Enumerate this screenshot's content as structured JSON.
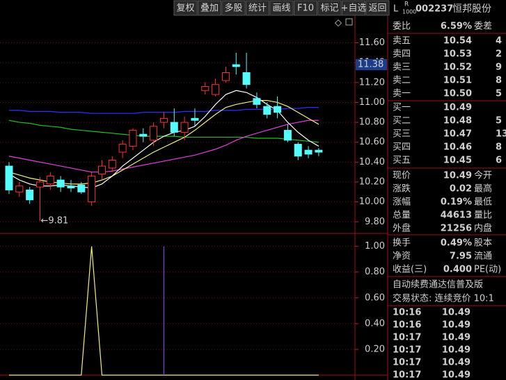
{
  "toolbar": [
    "复权",
    "叠加",
    "多股",
    "统计",
    "画线",
    "F10",
    "标记",
    "+自选",
    "返回"
  ],
  "chart_data": [
    {
      "type": "candlestick",
      "ylim": [
        9.69,
        12.03
      ],
      "yticks": [
        {
          "value": 11.6,
          "label": "11.60"
        },
        {
          "value": 11.4,
          "label": "11.40"
        },
        {
          "value": 11.2,
          "label": "11.20"
        },
        {
          "value": 11.0,
          "label": "11.00"
        },
        {
          "value": 10.8,
          "label": "10.80"
        },
        {
          "value": 10.6,
          "label": "10.60"
        },
        {
          "value": 10.4,
          "label": "10.40"
        },
        {
          "value": 10.2,
          "label": "10.20"
        },
        {
          "value": 10.0,
          "label": "10.00"
        },
        {
          "value": 9.8,
          "label": "9.80"
        }
      ],
      "crosshair_value": 11.38,
      "annotation": "←9.81",
      "annotation_value": 9.81,
      "up_color": "#ff3232",
      "down_color": "#54fcfc",
      "open": [
        10.36,
        10.1,
        10.12,
        10.15,
        10.18,
        10.22,
        10.16,
        10.17,
        10.0,
        10.28,
        10.34,
        10.5,
        10.56,
        10.68,
        10.62,
        10.8,
        10.8,
        10.7,
        10.84,
        11.12,
        11.08,
        11.22,
        11.38,
        11.3,
        11.04,
        10.96,
        10.96,
        10.72,
        10.58,
        10.52,
        10.52
      ],
      "high": [
        10.4,
        10.2,
        10.15,
        10.25,
        10.3,
        10.26,
        10.22,
        10.2,
        10.3,
        10.42,
        10.46,
        10.62,
        10.74,
        10.74,
        10.8,
        10.9,
        10.94,
        10.86,
        10.94,
        11.2,
        11.24,
        11.36,
        11.5,
        11.5,
        11.1,
        11.0,
        11.06,
        10.78,
        10.6,
        10.56,
        10.54
      ],
      "low": [
        10.08,
        10.05,
        9.98,
        9.81,
        10.12,
        10.1,
        10.1,
        10.08,
        9.96,
        10.22,
        10.3,
        10.44,
        10.52,
        10.6,
        10.56,
        10.74,
        10.66,
        10.62,
        10.76,
        11.08,
        11.06,
        11.2,
        11.28,
        11.14,
        10.94,
        10.84,
        10.84,
        10.6,
        10.42,
        10.44,
        10.46
      ],
      "close": [
        10.12,
        10.16,
        10.02,
        10.2,
        10.26,
        10.15,
        10.14,
        10.1,
        10.26,
        10.36,
        10.42,
        10.58,
        10.72,
        10.66,
        10.76,
        10.84,
        10.7,
        10.8,
        10.82,
        11.16,
        11.18,
        11.3,
        11.36,
        11.18,
        10.98,
        10.88,
        10.9,
        10.62,
        10.46,
        10.48,
        10.5
      ],
      "series": [
        {
          "color": "#3030ff",
          "values": [
            10.92,
            10.92,
            10.91,
            10.91,
            10.91,
            10.9,
            10.9,
            10.9,
            10.89,
            10.89,
            10.89,
            10.89,
            10.89,
            10.9,
            10.9,
            10.9,
            10.9,
            10.91,
            10.91,
            10.91,
            10.92,
            10.92,
            10.92,
            10.93,
            10.93,
            10.93,
            10.93,
            10.94,
            10.94,
            10.95,
            10.95
          ]
        },
        {
          "color": "#20c020",
          "values": [
            10.82,
            10.8,
            10.79,
            10.77,
            10.76,
            10.75,
            10.73,
            10.72,
            10.71,
            10.7,
            10.69,
            10.68,
            10.67,
            10.66,
            10.66,
            10.66,
            10.66,
            10.65,
            10.65,
            10.65,
            10.65,
            10.65,
            10.65,
            10.65,
            10.64,
            10.64,
            10.64,
            10.63,
            10.62,
            10.61,
            10.6
          ]
        },
        {
          "color": "#e040e0",
          "values": [
            10.46,
            10.44,
            10.42,
            10.4,
            10.38,
            10.36,
            10.34,
            10.32,
            10.3,
            10.3,
            10.31,
            10.33,
            10.35,
            10.37,
            10.39,
            10.41,
            10.43,
            10.45,
            10.47,
            10.5,
            10.53,
            10.57,
            10.62,
            10.66,
            10.69,
            10.72,
            10.75,
            10.78,
            10.8,
            10.82,
            10.82
          ]
        },
        {
          "color": "#f0f080",
          "values": [
            10.3,
            10.27,
            10.24,
            10.22,
            10.2,
            10.19,
            10.18,
            10.18,
            10.19,
            10.22,
            10.26,
            10.32,
            10.38,
            10.44,
            10.5,
            10.55,
            10.6,
            10.65,
            10.72,
            10.8,
            10.88,
            10.95,
            10.98,
            11.0,
            11.02,
            11.02,
            11.0,
            10.96,
            10.9,
            10.84,
            10.78
          ]
        },
        {
          "color": "#ffffff",
          "values": [
            10.28,
            10.22,
            10.18,
            10.16,
            10.16,
            10.17,
            10.16,
            10.15,
            10.14,
            10.18,
            10.26,
            10.36,
            10.44,
            10.52,
            10.6,
            10.66,
            10.7,
            10.72,
            10.76,
            10.86,
            10.98,
            11.08,
            11.12,
            11.1,
            11.05,
            10.98,
            10.92,
            10.8,
            10.7,
            10.62,
            10.56
          ]
        }
      ]
    },
    {
      "type": "line",
      "ylim": [
        0,
        1.09
      ],
      "yticks": [
        {
          "value": 1.0,
          "label": "1.00"
        },
        {
          "value": 0.8,
          "label": "0.80"
        },
        {
          "value": 0.6,
          "label": "0.60"
        },
        {
          "value": 0.4,
          "label": "0.40"
        },
        {
          "value": 0.2,
          "label": "0.20"
        }
      ],
      "series": [
        {
          "color": "#f0f080",
          "kind": "line",
          "values": [
            0,
            0,
            0,
            0,
            0,
            0,
            0,
            0,
            1,
            0,
            0,
            0,
            0,
            0,
            0,
            0,
            0,
            0,
            0,
            0,
            0,
            0,
            0,
            0,
            0,
            0,
            0,
            0,
            0,
            0,
            0
          ]
        },
        {
          "color": "#a040ff",
          "kind": "bar",
          "values": [
            0,
            0,
            0,
            0,
            0,
            0,
            0,
            0,
            0,
            0,
            0,
            0,
            0,
            0,
            0,
            1,
            0,
            0,
            0,
            0,
            0,
            0,
            0,
            0,
            0,
            0,
            0,
            0,
            0,
            0,
            0
          ]
        }
      ]
    }
  ],
  "quote_panel": {
    "badge_left": "L",
    "badge_top": "R",
    "badge_bottom": "1000",
    "code": "002237",
    "name": "恒邦股份",
    "commission": {
      "label": "委比",
      "value": "6.59%",
      "label2": "委差",
      "color": "#ff5050"
    },
    "asks": [
      {
        "label": "卖五",
        "price": "10.54",
        "volume": "4",
        "color": "#ff5050"
      },
      {
        "label": "卖四",
        "price": "10.53",
        "volume": "2",
        "color": "#ff5050"
      },
      {
        "label": "卖三",
        "price": "10.52",
        "volume": "9",
        "color": "#ff5050"
      },
      {
        "label": "卖二",
        "price": "10.51",
        "volume": "8",
        "color": "#ff5050"
      },
      {
        "label": "卖一",
        "price": "10.50",
        "volume": "5",
        "color": "#ff5050"
      }
    ],
    "bids": [
      {
        "label": "买一",
        "price": "10.49",
        "volume": "",
        "color": "#ff5050"
      },
      {
        "label": "买二",
        "price": "10.48",
        "volume": "5",
        "color": "#ff5050"
      },
      {
        "label": "买三",
        "price": "10.47",
        "volume": "13",
        "color": "#ffffff"
      },
      {
        "label": "买四",
        "price": "10.46",
        "volume": "8",
        "color": "#20e020"
      },
      {
        "label": "买五",
        "price": "10.45",
        "volume": "6",
        "color": "#20e020"
      }
    ],
    "stats": [
      {
        "label": "现价",
        "value": "10.49",
        "label2": "今开",
        "color": "#ff5050"
      },
      {
        "label": "涨跌",
        "value": "0.02",
        "label2": "最高",
        "color": "#ff5050"
      },
      {
        "label": "涨幅",
        "value": "0.19%",
        "label2": "最低",
        "color": "#ff5050"
      },
      {
        "label": "总量",
        "value": "44613",
        "label2": "量比",
        "color": "#f0f040"
      },
      {
        "label": "外盘",
        "value": "21256",
        "label2": "内盘",
        "color": "#ff5050"
      }
    ],
    "stats2": [
      {
        "label": "换手",
        "value": "0.49%",
        "label2": "股本",
        "color": "#ffffff"
      },
      {
        "label": "净资",
        "value": "7.95",
        "label2": "流通",
        "color": "#ffffff"
      },
      {
        "label": "收益(三)",
        "value": "0.400",
        "label2": "PE(动)",
        "color": "#ffffff"
      }
    ],
    "notice": "自动续费通达信普及版",
    "status": "交易状态: 连续竞价 10:1",
    "ticks": [
      {
        "time": "10:16",
        "price": "10.49"
      },
      {
        "time": "10:16",
        "price": "10.49"
      },
      {
        "time": "10:17",
        "price": "10.49"
      },
      {
        "time": "10:17",
        "price": "10.49"
      },
      {
        "time": "10:17",
        "price": "10.49"
      },
      {
        "time": "10:17",
        "price": "10.49"
      }
    ]
  }
}
